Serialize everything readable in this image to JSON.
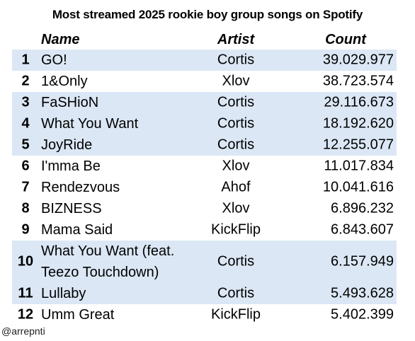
{
  "chart_data": {
    "type": "table",
    "title": "Most streamed 2025 rookie boy group songs on Spotify",
    "columns": [
      "Name",
      "Artist",
      "Count"
    ],
    "rows": [
      {
        "rank": "1",
        "name": "GO!",
        "artist": "Cortis",
        "count": "39.029.977",
        "shaded": true
      },
      {
        "rank": "2",
        "name": "1&Only",
        "artist": "Xlov",
        "count": "38.723.574",
        "shaded": false
      },
      {
        "rank": "3",
        "name": "FaSHioN",
        "artist": "Cortis",
        "count": "29.116.673",
        "shaded": true
      },
      {
        "rank": "4",
        "name": "What You Want",
        "artist": "Cortis",
        "count": "18.192.620",
        "shaded": true
      },
      {
        "rank": "5",
        "name": "JoyRide",
        "artist": "Cortis",
        "count": "12.255.077",
        "shaded": true
      },
      {
        "rank": "6",
        "name": "I'mma Be",
        "artist": "Xlov",
        "count": "11.017.834",
        "shaded": false
      },
      {
        "rank": "7",
        "name": "Rendezvous",
        "artist": "Ahof",
        "count": "10.041.616",
        "shaded": false
      },
      {
        "rank": "8",
        "name": "BIZNESS",
        "artist": "Xlov",
        "count": "6.896.232",
        "shaded": false
      },
      {
        "rank": "9",
        "name": "Mama Said",
        "artist": "KickFlip",
        "count": "6.843.607",
        "shaded": false
      },
      {
        "rank": "10",
        "name": "What You Want (feat. Teezo Touchdown)",
        "artist": "Cortis",
        "count": "6.157.949",
        "shaded": true
      },
      {
        "rank": "11",
        "name": "Lullaby",
        "artist": "Cortis",
        "count": "5.493.628",
        "shaded": true
      },
      {
        "rank": "12",
        "name": "Umm Great",
        "artist": "KickFlip",
        "count": "5.402.399",
        "shaded": false
      }
    ],
    "highlight_color": "#dbe7f5"
  },
  "credit": "@arrepnti"
}
